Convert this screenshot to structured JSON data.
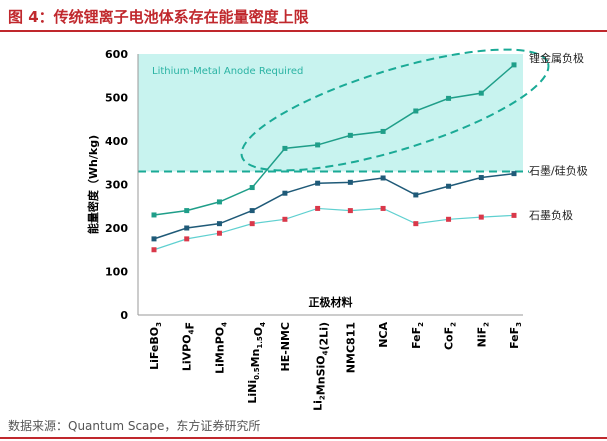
{
  "title": "图 4：传统锂离子电池体系存在能量密度上限",
  "source": "数据来源：Quantum Scape，东方证券研究所",
  "chart_data": {
    "type": "line",
    "title": "",
    "xlabel": "正极材料",
    "ylabel": "能量密度（Wh/kg)",
    "ylim": [
      0,
      600
    ],
    "yticks": [
      0,
      100,
      200,
      300,
      400,
      500,
      600
    ],
    "categories": [
      "LiFeBO3",
      "LiVPO4F",
      "LiMnPO4",
      "LiNi0.5Mn1.5O4",
      "HE-NMC",
      "Li2MnSiO4(2Li)",
      "NMC811",
      "NCA",
      "FeF2",
      "CoF2",
      "NiF2",
      "FeF3"
    ],
    "category_labels": [
      [
        "LiFeBO",
        [
          "3"
        ]
      ],
      [
        "LiVPO",
        [
          "4"
        ],
        "F"
      ],
      [
        "LiMnPO",
        [
          "4"
        ]
      ],
      [
        "LiNi",
        [
          "0.5"
        ],
        "Mn",
        [
          "1.5"
        ],
        "O",
        [
          "4"
        ]
      ],
      [
        "HE-NMC"
      ],
      [
        "Li",
        [
          "2"
        ],
        "MnSiO",
        [
          "4"
        ],
        "(2Li)"
      ],
      [
        "NMC811"
      ],
      [
        "NCA"
      ],
      [
        "FeF",
        [
          "2"
        ]
      ],
      [
        "CoF",
        [
          "2"
        ]
      ],
      [
        "NiF",
        [
          "2"
        ]
      ],
      [
        "FeF",
        [
          "3"
        ]
      ]
    ],
    "series": [
      {
        "name": "锂金属负极",
        "color": "#1f9e89",
        "values": [
          230,
          240,
          260,
          293,
          383,
          391,
          413,
          422,
          469,
          498,
          510,
          575
        ]
      },
      {
        "name": "石墨/硅负极",
        "color": "#1f5a78",
        "values": [
          175,
          200,
          210,
          240,
          280,
          303,
          305,
          315,
          276,
          296,
          316,
          325
        ]
      },
      {
        "name": "石墨负极",
        "color": "#5fd0d0",
        "marker_color": "#d9384a",
        "values": [
          150,
          175,
          188,
          210,
          220,
          245,
          240,
          245,
          210,
          220,
          225,
          229
        ]
      }
    ],
    "threshold": {
      "value": 330,
      "label": "Lithium-Metal Anode Required",
      "region_color": "#c8f3ef",
      "line_color": "#1aaa96"
    },
    "grid": false
  }
}
